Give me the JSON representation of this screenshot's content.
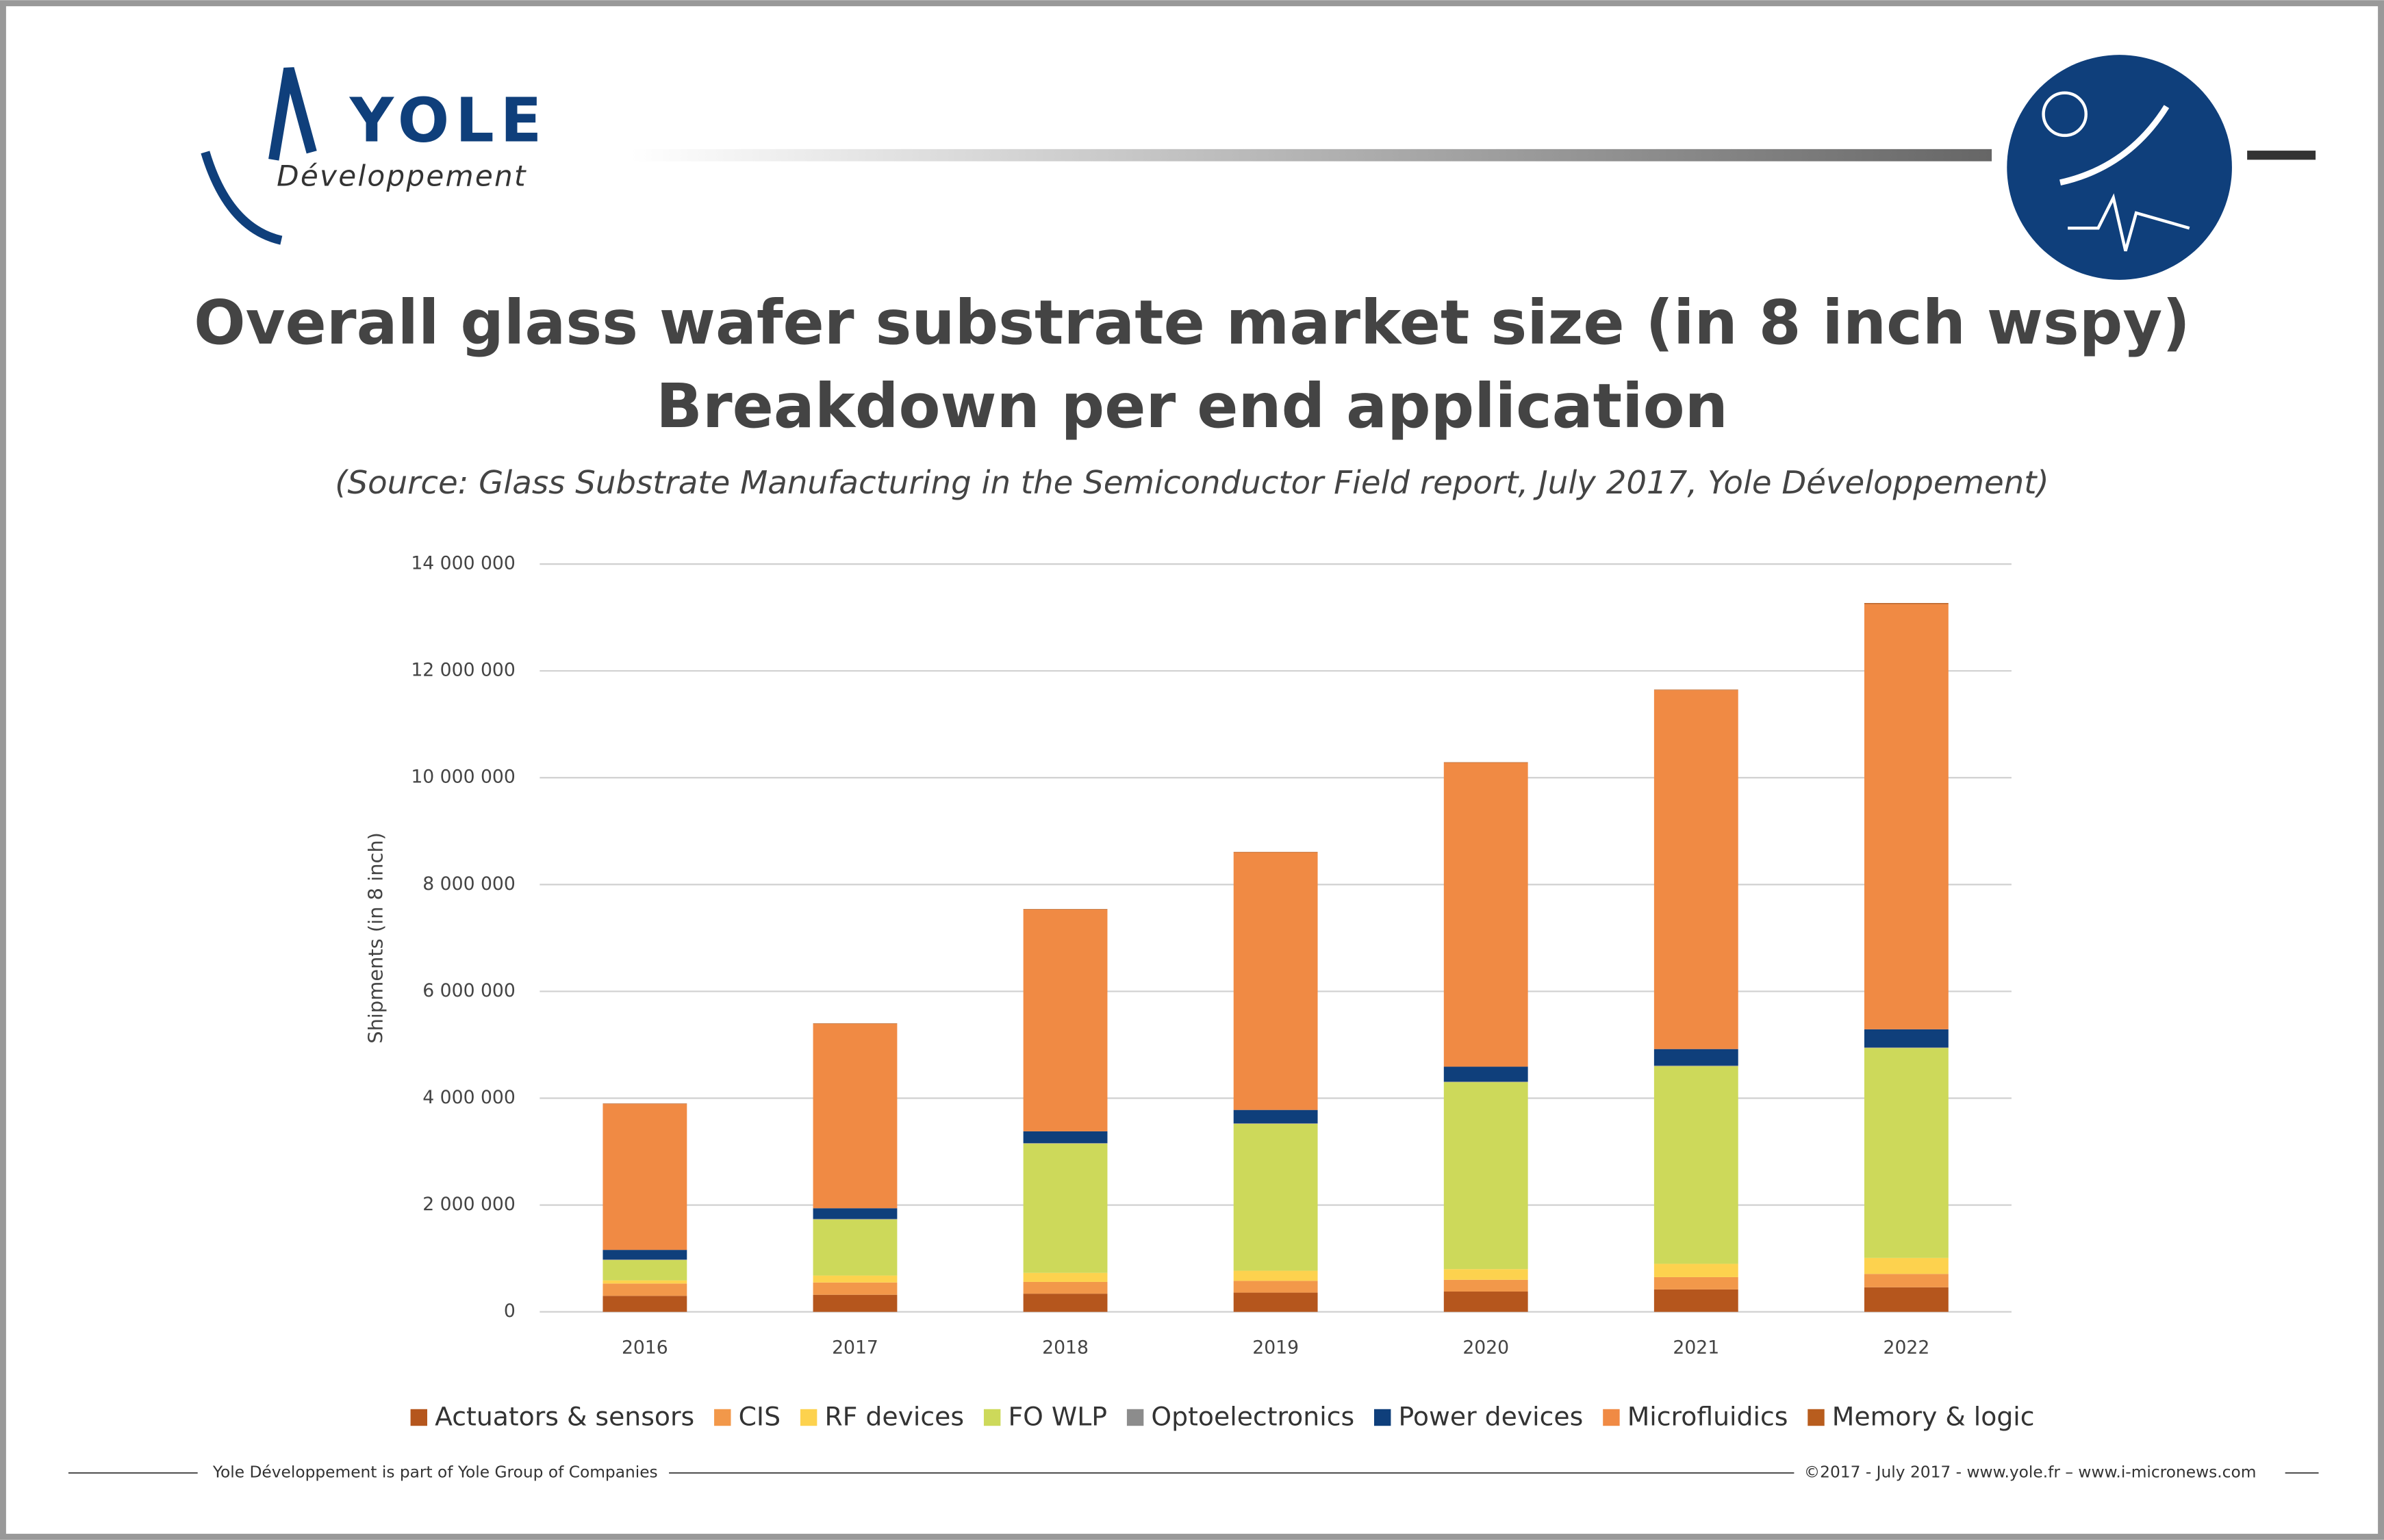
{
  "header": {
    "brand": "YOLE",
    "brand_sub": "Développement"
  },
  "chart_data": {
    "type": "bar",
    "stacked": true,
    "title": "Overall glass wafer substrate market size (in 8 inch wspy)",
    "subtitle": "Breakdown per end application",
    "source": "(Source: Glass Substrate Manufacturing in the Semiconductor Field report, July 2017, Yole Développement)",
    "y_label": "Shipments (in 8 inch)",
    "categories": [
      "2016",
      "2017",
      "2018",
      "2019",
      "2020",
      "2021",
      "2022"
    ],
    "series": [
      {
        "name": "Actuators & sensors",
        "color": "#b5561d",
        "values": [
          300000,
          320000,
          340000,
          360000,
          380000,
          420000,
          460000
        ]
      },
      {
        "name": "CIS",
        "color": "#f2984a",
        "values": [
          230000,
          230000,
          220000,
          220000,
          220000,
          230000,
          250000
        ]
      },
      {
        "name": "RF devices",
        "color": "#fdd24e",
        "values": [
          60000,
          130000,
          170000,
          190000,
          200000,
          250000,
          300000
        ]
      },
      {
        "name": "FO WLP",
        "color": "#cdd95a",
        "values": [
          380000,
          1050000,
          2420000,
          2750000,
          3500000,
          3700000,
          3930000
        ]
      },
      {
        "name": "Optoelectronics",
        "color": "#8c8c8c",
        "values": [
          10000,
          10000,
          10000,
          10000,
          10000,
          10000,
          10000
        ]
      },
      {
        "name": "Power devices",
        "color": "#0f3f7b",
        "values": [
          180000,
          200000,
          220000,
          250000,
          280000,
          310000,
          340000
        ]
      },
      {
        "name": "Microfluidics",
        "color": "#f08a44",
        "values": [
          2730000,
          3450000,
          4150000,
          4820000,
          5690000,
          6720000,
          7960000
        ]
      },
      {
        "name": "Memory & logic",
        "color": "#b85d1e",
        "values": [
          10000,
          10000,
          10000,
          10000,
          10000,
          10000,
          20000
        ]
      }
    ],
    "ylim": [
      0,
      14000000
    ],
    "yticks": [
      0,
      {
        "value": 2000000,
        "label": "2 000 000"
      },
      {
        "value": 4000000,
        "label": "4 000 000"
      },
      {
        "value": 6000000,
        "label": "6 000 000"
      },
      {
        "value": 8000000,
        "label": "8 000 000"
      },
      {
        "value": 10000000,
        "label": "10 000 000"
      },
      {
        "value": 12000000,
        "label": "12 000 000"
      },
      {
        "value": 14000000,
        "label": "14 000 000"
      }
    ],
    "grid": true,
    "legend": "bottom"
  },
  "footer": {
    "left": "Yole Développement is part of Yole Group of Companies",
    "right": "©2017 - July 2017 - www.yole.fr – www.i-micronews.com"
  }
}
